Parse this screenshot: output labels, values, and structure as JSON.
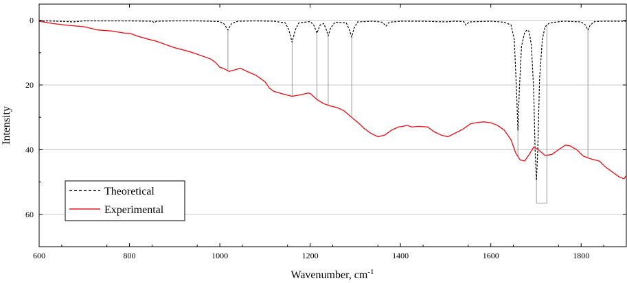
{
  "chart_data": {
    "type": "line",
    "title": "",
    "xlabel": "Wavenumber, cm",
    "xlabel_sup": "-1",
    "ylabel": "Intensity",
    "xlim": [
      600,
      1900
    ],
    "ylim": [
      -5,
      70
    ],
    "y_inverted": true,
    "x_ticks": [
      600,
      800,
      1000,
      1200,
      1400,
      1600,
      1800
    ],
    "x_tick_labels": [
      "600",
      "800",
      "1000",
      "1200",
      "1400",
      "1600",
      "1800"
    ],
    "y_ticks": [
      0,
      20,
      40,
      60
    ],
    "y_tick_labels": [
      "0",
      "20",
      "40",
      "60"
    ],
    "grid": true,
    "legend_position": "bottom-left",
    "series": [
      {
        "name": "Theoretical",
        "color": "#000000",
        "style": "dashed",
        "points": [
          [
            600,
            0.3
          ],
          [
            620,
            0.2
          ],
          [
            640,
            0.3
          ],
          [
            660,
            0.4
          ],
          [
            675,
            0.5
          ],
          [
            700,
            0.2
          ],
          [
            750,
            0.2
          ],
          [
            800,
            0.2
          ],
          [
            850,
            0.3
          ],
          [
            855,
            0.7
          ],
          [
            860,
            0.3
          ],
          [
            900,
            0.2
          ],
          [
            950,
            0.2
          ],
          [
            1000,
            0.4
          ],
          [
            1010,
            1.2
          ],
          [
            1018,
            3.0
          ],
          [
            1026,
            1.0
          ],
          [
            1040,
            0.3
          ],
          [
            1080,
            0.2
          ],
          [
            1120,
            0.3
          ],
          [
            1145,
            0.8
          ],
          [
            1153,
            3.0
          ],
          [
            1160,
            6.8
          ],
          [
            1167,
            3.0
          ],
          [
            1175,
            0.8
          ],
          [
            1200,
            0.4
          ],
          [
            1208,
            1.5
          ],
          [
            1215,
            4.0
          ],
          [
            1222,
            1.5
          ],
          [
            1230,
            1.0
          ],
          [
            1236,
            3.0
          ],
          [
            1240,
            4.8
          ],
          [
            1245,
            2.5
          ],
          [
            1255,
            0.6
          ],
          [
            1280,
            0.8
          ],
          [
            1287,
            3.0
          ],
          [
            1292,
            5.2
          ],
          [
            1297,
            2.5
          ],
          [
            1305,
            0.5
          ],
          [
            1340,
            0.3
          ],
          [
            1360,
            0.6
          ],
          [
            1368,
            1.8
          ],
          [
            1375,
            0.6
          ],
          [
            1400,
            0.3
          ],
          [
            1450,
            0.3
          ],
          [
            1500,
            0.5
          ],
          [
            1520,
            0.3
          ],
          [
            1540,
            0.4
          ],
          [
            1545,
            1.5
          ],
          [
            1552,
            0.5
          ],
          [
            1600,
            0.3
          ],
          [
            1630,
            0.6
          ],
          [
            1645,
            1.5
          ],
          [
            1652,
            6.0
          ],
          [
            1657,
            22.0
          ],
          [
            1660,
            34.0
          ],
          [
            1663,
            22.0
          ],
          [
            1668,
            8.0
          ],
          [
            1675,
            3.8
          ],
          [
            1680,
            3.0
          ],
          [
            1685,
            3.5
          ],
          [
            1690,
            8.0
          ],
          [
            1695,
            22.0
          ],
          [
            1698,
            40.0
          ],
          [
            1701,
            49.5
          ],
          [
            1704,
            40.0
          ],
          [
            1708,
            18.0
          ],
          [
            1714,
            6.0
          ],
          [
            1720,
            2.0
          ],
          [
            1730,
            0.8
          ],
          [
            1760,
            0.3
          ],
          [
            1800,
            0.5
          ],
          [
            1810,
            1.5
          ],
          [
            1815,
            3.0
          ],
          [
            1820,
            1.5
          ],
          [
            1830,
            0.4
          ],
          [
            1850,
            0.3
          ],
          [
            1900,
            0.3
          ]
        ]
      },
      {
        "name": "Experimental",
        "color": "#e8191e",
        "style": "solid",
        "points": [
          [
            600,
            0.3
          ],
          [
            630,
            1.0
          ],
          [
            660,
            1.5
          ],
          [
            700,
            2.0
          ],
          [
            730,
            3.0
          ],
          [
            760,
            3.3
          ],
          [
            790,
            4.0
          ],
          [
            800,
            4.0
          ],
          [
            820,
            5.0
          ],
          [
            840,
            5.8
          ],
          [
            860,
            6.5
          ],
          [
            880,
            7.5
          ],
          [
            900,
            8.5
          ],
          [
            920,
            9.2
          ],
          [
            940,
            10.0
          ],
          [
            960,
            11.0
          ],
          [
            980,
            12.0
          ],
          [
            990,
            13.0
          ],
          [
            1000,
            14.5
          ],
          [
            1010,
            15.0
          ],
          [
            1020,
            15.8
          ],
          [
            1030,
            15.5
          ],
          [
            1045,
            14.8
          ],
          [
            1060,
            15.8
          ],
          [
            1080,
            17.0
          ],
          [
            1100,
            19.0
          ],
          [
            1110,
            21.0
          ],
          [
            1120,
            22.0
          ],
          [
            1140,
            22.8
          ],
          [
            1160,
            23.5
          ],
          [
            1180,
            23.0
          ],
          [
            1195,
            22.5
          ],
          [
            1200,
            22.6
          ],
          [
            1215,
            24.5
          ],
          [
            1230,
            25.8
          ],
          [
            1245,
            26.5
          ],
          [
            1260,
            27.0
          ],
          [
            1275,
            28.0
          ],
          [
            1290,
            29.8
          ],
          [
            1305,
            31.5
          ],
          [
            1320,
            33.5
          ],
          [
            1335,
            35.0
          ],
          [
            1350,
            36.0
          ],
          [
            1365,
            35.5
          ],
          [
            1380,
            34.0
          ],
          [
            1395,
            33.0
          ],
          [
            1405,
            32.8
          ],
          [
            1415,
            32.5
          ],
          [
            1425,
            33.0
          ],
          [
            1440,
            32.8
          ],
          [
            1460,
            33.0
          ],
          [
            1475,
            34.5
          ],
          [
            1490,
            35.5
          ],
          [
            1505,
            36.0
          ],
          [
            1520,
            35.0
          ],
          [
            1540,
            33.5
          ],
          [
            1555,
            32.0
          ],
          [
            1570,
            31.6
          ],
          [
            1585,
            31.4
          ],
          [
            1600,
            31.7
          ],
          [
            1615,
            32.5
          ],
          [
            1630,
            34.0
          ],
          [
            1645,
            37.0
          ],
          [
            1655,
            41.0
          ],
          [
            1665,
            43.2
          ],
          [
            1675,
            43.5
          ],
          [
            1685,
            41.5
          ],
          [
            1695,
            39.2
          ],
          [
            1705,
            40.0
          ],
          [
            1720,
            41.8
          ],
          [
            1735,
            41.5
          ],
          [
            1750,
            40.0
          ],
          [
            1765,
            38.6
          ],
          [
            1775,
            38.8
          ],
          [
            1790,
            40.0
          ],
          [
            1805,
            42.0
          ],
          [
            1820,
            42.8
          ],
          [
            1840,
            43.5
          ],
          [
            1855,
            45.5
          ],
          [
            1870,
            47.0
          ],
          [
            1885,
            48.5
          ],
          [
            1895,
            49.0
          ],
          [
            1900,
            48.0
          ]
        ]
      }
    ],
    "peak_markers": [
      1018,
      1160,
      1215,
      1240,
      1292,
      1660,
      1701,
      1724,
      1815
    ],
    "peak_marker_color": "#808080"
  }
}
